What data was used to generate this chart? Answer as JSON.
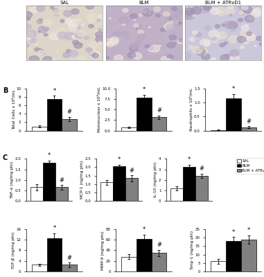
{
  "panel_B": {
    "total_cells": {
      "ylabel": "Total Cells x 10⁶/mL",
      "ylim": [
        0,
        10
      ],
      "yticks": [
        0,
        2,
        4,
        6,
        8,
        10
      ],
      "values": [
        1.0,
        7.5,
        2.8
      ],
      "errors": [
        0.3,
        0.8,
        0.5
      ]
    },
    "mononuclear": {
      "ylabel": "Mononuclear x 10⁶/mL",
      "ylim": [
        0.0,
        10.0
      ],
      "yticks": [
        0.0,
        2.5,
        5.0,
        7.5,
        10.0
      ],
      "values": [
        0.8,
        7.8,
        3.2
      ],
      "errors": [
        0.2,
        0.7,
        0.4
      ]
    },
    "neutrophils": {
      "ylabel": "Neutrophils x 10⁶/mL",
      "ylim": [
        0.0,
        1.5
      ],
      "yticks": [
        0.0,
        0.5,
        1.0,
        1.5
      ],
      "values": [
        0.02,
        1.15,
        0.12
      ],
      "errors": [
        0.01,
        0.15,
        0.04
      ]
    }
  },
  "panel_C_top": {
    "tnf": {
      "ylabel": "TNF-α (ng/mg ptn)",
      "ylim": [
        0.0,
        2.0
      ],
      "yticks": [
        0.0,
        0.5,
        1.0,
        1.5,
        2.0
      ],
      "values": [
        0.65,
        1.8,
        0.65
      ],
      "errors": [
        0.15,
        0.12,
        0.1
      ],
      "star_idx": 1,
      "hash_idx": 2
    },
    "mcp1": {
      "ylabel": "MCP-1 (ng/mg ptn)",
      "ylim": [
        0.0,
        2.5
      ],
      "yticks": [
        0.0,
        0.5,
        1.0,
        1.5,
        2.0,
        2.5
      ],
      "values": [
        1.1,
        2.05,
        1.35
      ],
      "errors": [
        0.15,
        0.1,
        0.18
      ],
      "star_idx": 1,
      "hash_idx": 2
    },
    "il10": {
      "ylabel": "IL-10 (ng/mg ptn)",
      "ylim": [
        0,
        4
      ],
      "yticks": [
        0,
        1,
        2,
        3,
        4
      ],
      "values": [
        1.2,
        3.2,
        2.4
      ],
      "errors": [
        0.2,
        0.25,
        0.2
      ],
      "star_idx": 1,
      "hash_idx": 2
    }
  },
  "panel_C_bot": {
    "tgfb": {
      "ylabel": "TGF-β (ng/mg ptn)",
      "ylim": [
        0,
        16
      ],
      "yticks": [
        0,
        4,
        8,
        12,
        16
      ],
      "values": [
        2.5,
        12.5,
        2.5
      ],
      "errors": [
        0.5,
        2.0,
        0.8
      ],
      "star_idx": 1,
      "hash_idx": 2,
      "hash_is_star": false
    },
    "mmp9": {
      "ylabel": "MMP-9 (ng/mg ptn)",
      "ylim": [
        0,
        80
      ],
      "yticks": [
        0,
        20,
        40,
        60,
        80
      ],
      "values": [
        28,
        62,
        35
      ],
      "errors": [
        5,
        8,
        6
      ],
      "star_idx": 1,
      "hash_idx": 2,
      "hash_is_star": false
    },
    "timp1": {
      "ylabel": "Timp-1 (ng/mg ptn)",
      "ylim": [
        0,
        25
      ],
      "yticks": [
        0,
        5,
        10,
        15,
        20,
        25
      ],
      "values": [
        6,
        18,
        19
      ],
      "errors": [
        1.5,
        2.5,
        2.5
      ],
      "star_idx": 1,
      "hash_idx": 2,
      "hash_is_star": true
    }
  },
  "bar_colors": [
    "white",
    "black",
    "#808080"
  ],
  "edge_color": "black",
  "sig_star": "*",
  "sig_hash": "#",
  "legend_labels": [
    "SAL",
    "BLM",
    "BLM + ATRvD1"
  ],
  "bar_width": 0.25,
  "group_positions": [
    0.2,
    0.45,
    0.7
  ],
  "font_size": 5,
  "label_font_size": 4.2,
  "tick_font_size": 4,
  "panel_label_font_size": 7
}
